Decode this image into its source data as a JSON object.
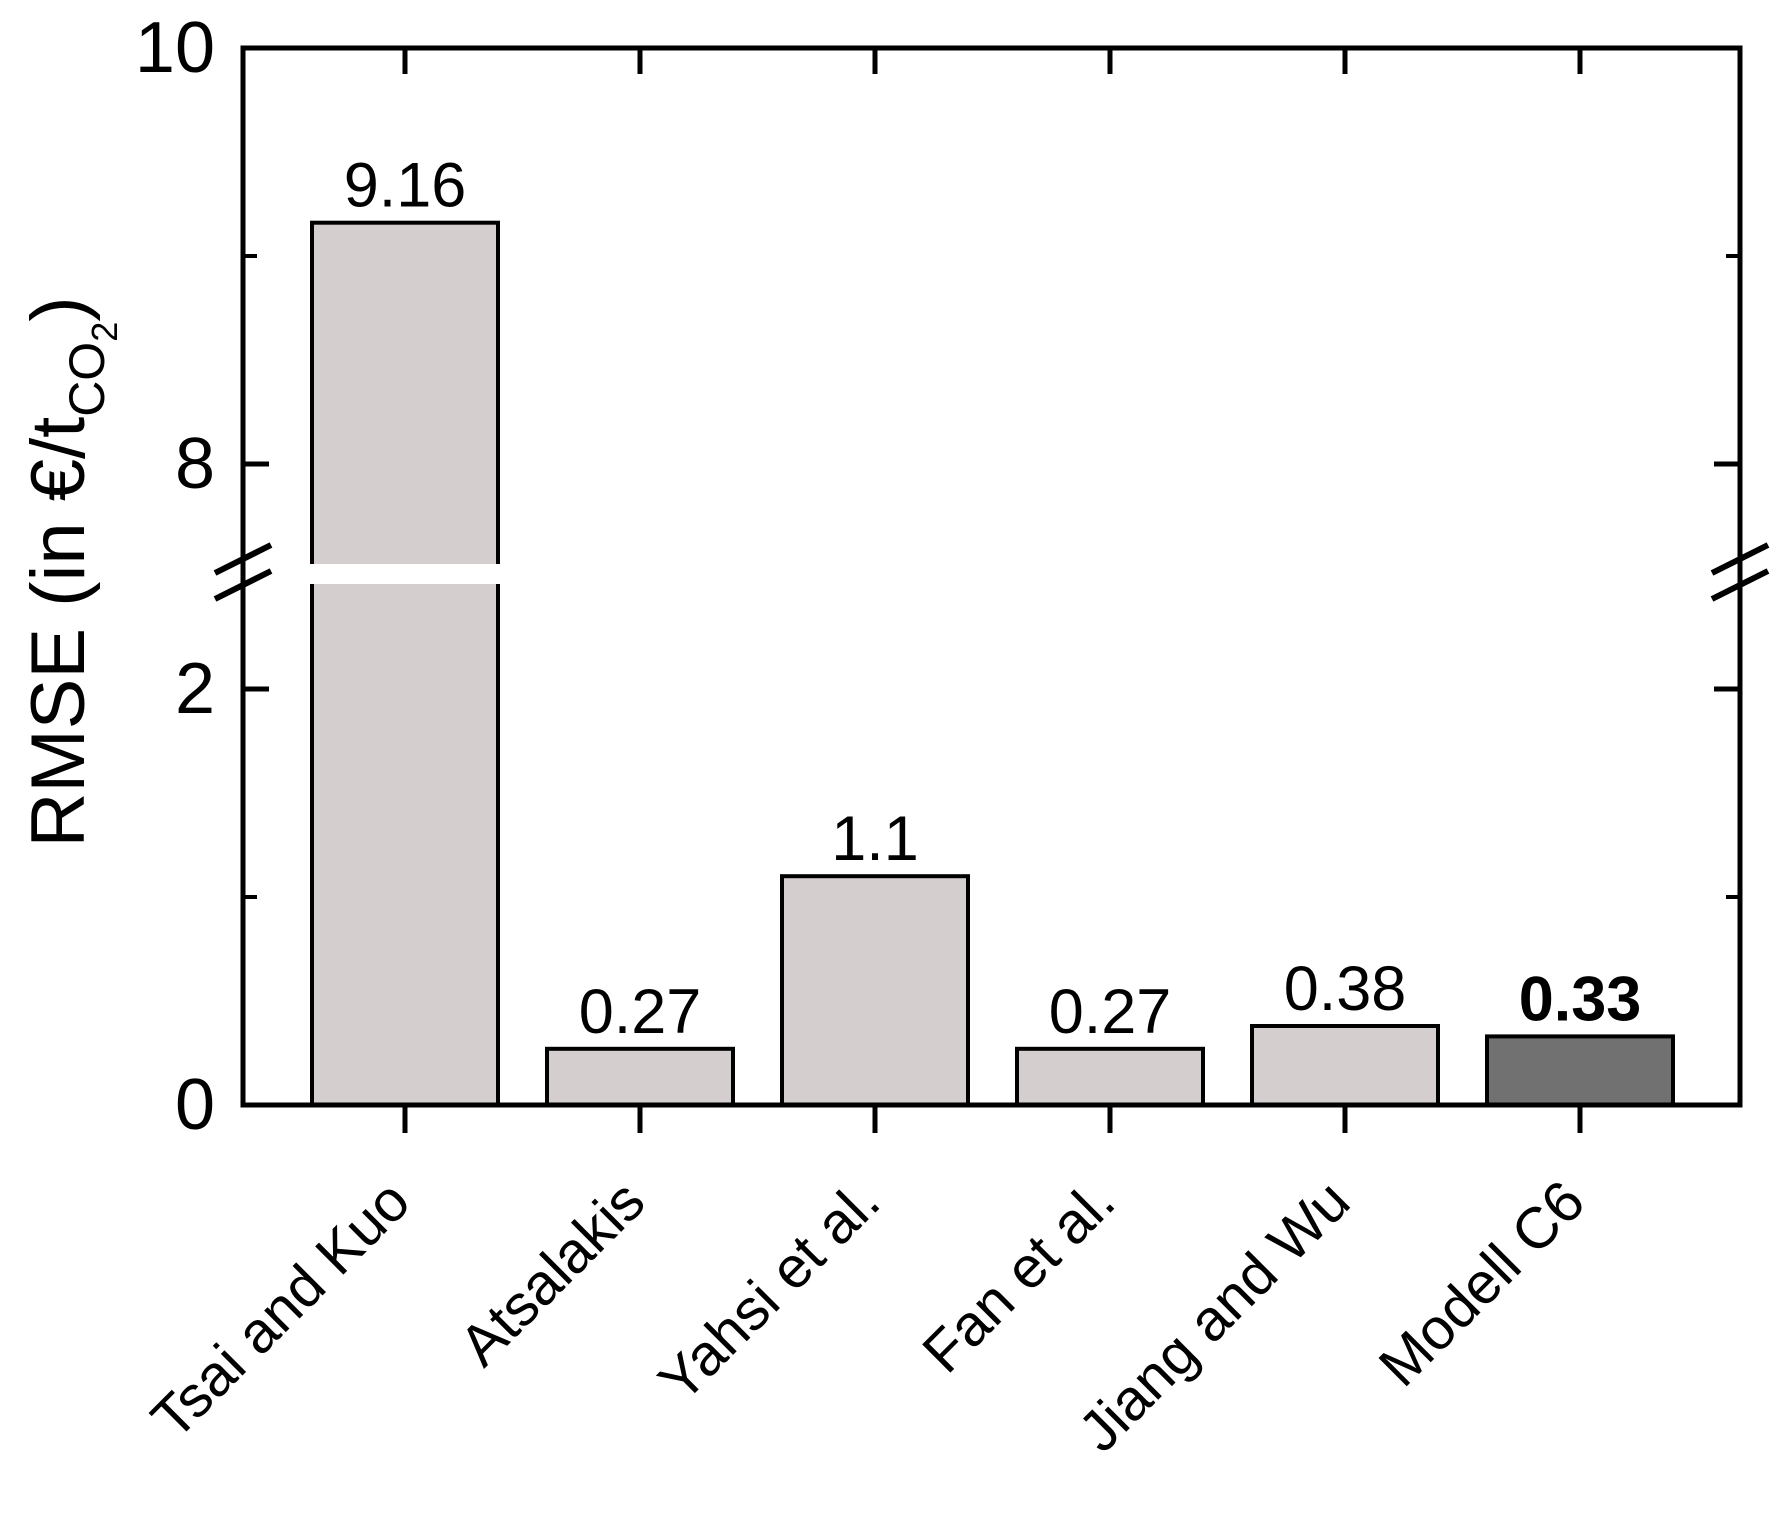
{
  "chart_data": {
    "type": "bar",
    "title": "",
    "categories": [
      "Tsai and Kuo",
      "Atsalakis",
      "Yahsi et al.",
      "Fan et al.",
      "Jiang and Wu",
      "Modell C6"
    ],
    "values": [
      9.16,
      0.27,
      1.1,
      0.27,
      0.38,
      0.33
    ],
    "bar_value_labels": [
      "9.16",
      "0.27",
      "1.1",
      "0.27",
      "0.38",
      "0.33"
    ],
    "highlight_index": 5,
    "xlabel": "",
    "ylabel_main": "RMSE (in €/t",
    "ylabel_sub": "CO",
    "ylabel_subsub": "2",
    "ylabel_close": ")",
    "ylim": [
      0,
      10
    ],
    "axis_break": {
      "lower_max": 2.55,
      "upper_min": 7.45
    },
    "y_ticks": {
      "major": [
        0,
        2,
        8,
        10
      ],
      "minor": [
        1,
        9
      ],
      "major_labels": [
        "0",
        "2",
        "8",
        "10"
      ]
    },
    "grid": false,
    "legend": null,
    "colors": {
      "bar_fill": "#d5cecf",
      "bar_highlight_fill": "#717171",
      "bar_stroke": "#000000",
      "axis": "#000000",
      "text": "#000000",
      "background": "#ffffff"
    }
  }
}
